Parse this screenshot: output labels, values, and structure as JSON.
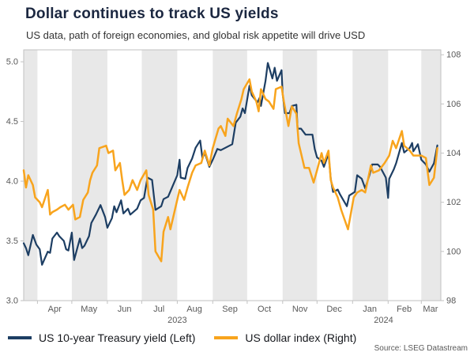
{
  "source": "Source: LSEG Datastream",
  "chart_data": {
    "type": "line",
    "title": "Dollar continues to track US yields",
    "subtitle": "US data, path of foreign economies, and global risk appetite will drive USD",
    "x_domain": [
      "2023-03-20",
      "2024-03-18"
    ],
    "legend_position": "bottom-left",
    "grid": "vertical-month-bands",
    "style": {
      "band": "#e8e8e8",
      "border": "#c2c2c2",
      "text": "#595959"
    },
    "left_axis": {
      "name": "US 10-year Treasury yield (%)",
      "range": [
        3.0,
        5.1
      ],
      "ticks": [
        "3.0",
        "3.5",
        "4.0",
        "4.5",
        "5.0"
      ]
    },
    "right_axis": {
      "name": "US dollar index",
      "range": [
        98,
        108.2
      ],
      "ticks": [
        "98",
        "100",
        "102",
        "104",
        "106",
        "108"
      ]
    },
    "month_starts": [
      "2023-04-01",
      "2023-05-01",
      "2023-06-01",
      "2023-07-01",
      "2023-08-01",
      "2023-09-01",
      "2023-10-01",
      "2023-11-01",
      "2023-12-01",
      "2024-01-01",
      "2024-02-01",
      "2024-03-01"
    ],
    "month_labels": [
      {
        "label": "Apr",
        "center": "2023-04-16"
      },
      {
        "label": "May",
        "center": "2023-05-16"
      },
      {
        "label": "Jun",
        "center": "2023-06-16"
      },
      {
        "label": "Jul",
        "center": "2023-07-16"
      },
      {
        "label": "Aug",
        "center": "2023-08-16"
      },
      {
        "label": "Sep",
        "center": "2023-09-16"
      },
      {
        "label": "Oct",
        "center": "2023-10-16"
      },
      {
        "label": "Nov",
        "center": "2023-11-16"
      },
      {
        "label": "Dec",
        "center": "2023-12-16"
      },
      {
        "label": "Jan",
        "center": "2024-01-16"
      },
      {
        "label": "Feb",
        "center": "2024-02-15"
      },
      {
        "label": "Mar",
        "center": "2024-03-09"
      }
    ],
    "year_labels": [
      {
        "label": "2023",
        "center": "2023-08-01"
      },
      {
        "label": "2024",
        "center": "2024-01-28"
      }
    ],
    "shaded_months": [
      [
        "2023-03-20",
        "2023-04-01"
      ],
      [
        "2023-05-01",
        "2023-06-01"
      ],
      [
        "2023-07-01",
        "2023-08-01"
      ],
      [
        "2023-09-01",
        "2023-10-01"
      ],
      [
        "2023-11-01",
        "2023-12-01"
      ],
      [
        "2024-01-01",
        "2024-02-01"
      ],
      [
        "2024-03-01",
        "2024-03-18"
      ]
    ],
    "series": [
      {
        "id": "treasury-yield",
        "name": "US 10-year Treasury yield (Left)",
        "axis": "left",
        "color": "#1d3e63",
        "width": 2.2,
        "points": [
          [
            "2023-03-20",
            3.48
          ],
          [
            "2023-03-22",
            3.44
          ],
          [
            "2023-03-24",
            3.38
          ],
          [
            "2023-03-28",
            3.55
          ],
          [
            "2023-03-31",
            3.47
          ],
          [
            "2023-04-03",
            3.43
          ],
          [
            "2023-04-05",
            3.3
          ],
          [
            "2023-04-10",
            3.41
          ],
          [
            "2023-04-12",
            3.4
          ],
          [
            "2023-04-14",
            3.52
          ],
          [
            "2023-04-18",
            3.57
          ],
          [
            "2023-04-20",
            3.54
          ],
          [
            "2023-04-24",
            3.5
          ],
          [
            "2023-04-26",
            3.43
          ],
          [
            "2023-04-28",
            3.42
          ],
          [
            "2023-05-01",
            3.57
          ],
          [
            "2023-05-03",
            3.34
          ],
          [
            "2023-05-08",
            3.52
          ],
          [
            "2023-05-10",
            3.44
          ],
          [
            "2023-05-12",
            3.46
          ],
          [
            "2023-05-16",
            3.54
          ],
          [
            "2023-05-18",
            3.65
          ],
          [
            "2023-05-22",
            3.72
          ],
          [
            "2023-05-26",
            3.8
          ],
          [
            "2023-05-30",
            3.7
          ],
          [
            "2023-06-01",
            3.61
          ],
          [
            "2023-06-05",
            3.69
          ],
          [
            "2023-06-07",
            3.79
          ],
          [
            "2023-06-09",
            3.74
          ],
          [
            "2023-06-13",
            3.84
          ],
          [
            "2023-06-15",
            3.73
          ],
          [
            "2023-06-19",
            3.77
          ],
          [
            "2023-06-21",
            3.72
          ],
          [
            "2023-06-27",
            3.77
          ],
          [
            "2023-06-30",
            3.84
          ],
          [
            "2023-07-03",
            3.86
          ],
          [
            "2023-07-06",
            4.03
          ],
          [
            "2023-07-10",
            4.01
          ],
          [
            "2023-07-13",
            3.76
          ],
          [
            "2023-07-18",
            3.79
          ],
          [
            "2023-07-20",
            3.85
          ],
          [
            "2023-07-24",
            3.87
          ],
          [
            "2023-07-28",
            3.96
          ],
          [
            "2023-08-01",
            4.05
          ],
          [
            "2023-08-03",
            4.18
          ],
          [
            "2023-08-04",
            4.03
          ],
          [
            "2023-08-08",
            4.02
          ],
          [
            "2023-08-10",
            4.11
          ],
          [
            "2023-08-14",
            4.19
          ],
          [
            "2023-08-17",
            4.28
          ],
          [
            "2023-08-21",
            4.34
          ],
          [
            "2023-08-23",
            4.19
          ],
          [
            "2023-08-25",
            4.24
          ],
          [
            "2023-08-29",
            4.12
          ],
          [
            "2023-09-01",
            4.18
          ],
          [
            "2023-09-05",
            4.27
          ],
          [
            "2023-09-08",
            4.26
          ],
          [
            "2023-09-12",
            4.28
          ],
          [
            "2023-09-14",
            4.29
          ],
          [
            "2023-09-18",
            4.31
          ],
          [
            "2023-09-21",
            4.49
          ],
          [
            "2023-09-25",
            4.54
          ],
          [
            "2023-09-27",
            4.61
          ],
          [
            "2023-09-29",
            4.57
          ],
          [
            "2023-10-03",
            4.8
          ],
          [
            "2023-10-05",
            4.72
          ],
          [
            "2023-10-10",
            4.66
          ],
          [
            "2023-10-12",
            4.7
          ],
          [
            "2023-10-13",
            4.63
          ],
          [
            "2023-10-17",
            4.84
          ],
          [
            "2023-10-19",
            4.99
          ],
          [
            "2023-10-23",
            4.86
          ],
          [
            "2023-10-25",
            4.95
          ],
          [
            "2023-10-27",
            4.84
          ],
          [
            "2023-10-31",
            4.93
          ],
          [
            "2023-11-01",
            4.73
          ],
          [
            "2023-11-03",
            4.57
          ],
          [
            "2023-11-07",
            4.57
          ],
          [
            "2023-11-09",
            4.63
          ],
          [
            "2023-11-13",
            4.64
          ],
          [
            "2023-11-14",
            4.44
          ],
          [
            "2023-11-17",
            4.44
          ],
          [
            "2023-11-21",
            4.39
          ],
          [
            "2023-11-27",
            4.39
          ],
          [
            "2023-11-29",
            4.27
          ],
          [
            "2023-12-01",
            4.2
          ],
          [
            "2023-12-05",
            4.17
          ],
          [
            "2023-12-07",
            4.12
          ],
          [
            "2023-12-11",
            4.23
          ],
          [
            "2023-12-13",
            4.02
          ],
          [
            "2023-12-15",
            3.91
          ],
          [
            "2023-12-19",
            3.93
          ],
          [
            "2023-12-21",
            3.89
          ],
          [
            "2023-12-27",
            3.79
          ],
          [
            "2023-12-29",
            3.88
          ],
          [
            "2024-01-03",
            3.91
          ],
          [
            "2024-01-05",
            4.05
          ],
          [
            "2024-01-09",
            4.02
          ],
          [
            "2024-01-12",
            3.94
          ],
          [
            "2024-01-16",
            4.06
          ],
          [
            "2024-01-18",
            4.14
          ],
          [
            "2024-01-23",
            4.14
          ],
          [
            "2024-01-25",
            4.12
          ],
          [
            "2024-01-30",
            4.03
          ],
          [
            "2024-02-01",
            3.86
          ],
          [
            "2024-02-02",
            4.02
          ],
          [
            "2024-02-06",
            4.1
          ],
          [
            "2024-02-08",
            4.15
          ],
          [
            "2024-02-13",
            4.32
          ],
          [
            "2024-02-15",
            4.24
          ],
          [
            "2024-02-20",
            4.28
          ],
          [
            "2024-02-22",
            4.32
          ],
          [
            "2024-02-23",
            4.25
          ],
          [
            "2024-02-27",
            4.31
          ],
          [
            "2024-03-01",
            4.18
          ],
          [
            "2024-03-05",
            4.14
          ],
          [
            "2024-03-08",
            4.08
          ],
          [
            "2024-03-12",
            4.15
          ],
          [
            "2024-03-15",
            4.3
          ]
        ]
      },
      {
        "id": "dollar-index",
        "name": "US dollar index (Right)",
        "axis": "right",
        "color": "#f8a41d",
        "width": 2.5,
        "points": [
          [
            "2023-03-20",
            103.3
          ],
          [
            "2023-03-22",
            102.6
          ],
          [
            "2023-03-24",
            103.1
          ],
          [
            "2023-03-28",
            102.7
          ],
          [
            "2023-03-30",
            102.2
          ],
          [
            "2023-04-03",
            102.0
          ],
          [
            "2023-04-05",
            101.8
          ],
          [
            "2023-04-10",
            102.5
          ],
          [
            "2023-04-12",
            101.5
          ],
          [
            "2023-04-14",
            101.6
          ],
          [
            "2023-04-18",
            101.7
          ],
          [
            "2023-04-21",
            101.8
          ],
          [
            "2023-04-25",
            101.9
          ],
          [
            "2023-04-28",
            101.7
          ],
          [
            "2023-05-02",
            101.9
          ],
          [
            "2023-05-04",
            101.3
          ],
          [
            "2023-05-08",
            101.4
          ],
          [
            "2023-05-11",
            102.1
          ],
          [
            "2023-05-15",
            102.4
          ],
          [
            "2023-05-17",
            102.9
          ],
          [
            "2023-05-19",
            103.2
          ],
          [
            "2023-05-23",
            103.5
          ],
          [
            "2023-05-25",
            104.2
          ],
          [
            "2023-05-31",
            104.3
          ],
          [
            "2023-06-02",
            104.0
          ],
          [
            "2023-06-06",
            104.1
          ],
          [
            "2023-06-08",
            103.3
          ],
          [
            "2023-06-12",
            103.6
          ],
          [
            "2023-06-14",
            102.9
          ],
          [
            "2023-06-16",
            102.3
          ],
          [
            "2023-06-20",
            102.5
          ],
          [
            "2023-06-23",
            102.9
          ],
          [
            "2023-06-27",
            102.5
          ],
          [
            "2023-06-30",
            102.9
          ],
          [
            "2023-07-05",
            103.3
          ],
          [
            "2023-07-07",
            102.3
          ],
          [
            "2023-07-11",
            101.7
          ],
          [
            "2023-07-13",
            100.0
          ],
          [
            "2023-07-18",
            99.6
          ],
          [
            "2023-07-20",
            100.8
          ],
          [
            "2023-07-24",
            101.4
          ],
          [
            "2023-07-26",
            100.9
          ],
          [
            "2023-07-31",
            101.9
          ],
          [
            "2023-08-03",
            102.5
          ],
          [
            "2023-08-07",
            102.1
          ],
          [
            "2023-08-10",
            102.6
          ],
          [
            "2023-08-14",
            103.2
          ],
          [
            "2023-08-17",
            103.5
          ],
          [
            "2023-08-22",
            103.6
          ],
          [
            "2023-08-25",
            104.1
          ],
          [
            "2023-08-29",
            103.5
          ],
          [
            "2023-09-01",
            104.2
          ],
          [
            "2023-09-06",
            105.0
          ],
          [
            "2023-09-08",
            105.1
          ],
          [
            "2023-09-12",
            104.7
          ],
          [
            "2023-09-14",
            105.4
          ],
          [
            "2023-09-19",
            105.1
          ],
          [
            "2023-09-22",
            105.6
          ],
          [
            "2023-09-26",
            106.2
          ],
          [
            "2023-09-28",
            106.6
          ],
          [
            "2023-10-03",
            107.0
          ],
          [
            "2023-10-05",
            106.5
          ],
          [
            "2023-10-09",
            106.1
          ],
          [
            "2023-10-11",
            105.7
          ],
          [
            "2023-10-13",
            106.6
          ],
          [
            "2023-10-17",
            106.2
          ],
          [
            "2023-10-20",
            106.1
          ],
          [
            "2023-10-24",
            105.8
          ],
          [
            "2023-10-26",
            106.6
          ],
          [
            "2023-10-31",
            106.7
          ],
          [
            "2023-11-02",
            106.1
          ],
          [
            "2023-11-06",
            105.1
          ],
          [
            "2023-11-09",
            105.9
          ],
          [
            "2023-11-13",
            105.6
          ],
          [
            "2023-11-15",
            104.4
          ],
          [
            "2023-11-20",
            103.4
          ],
          [
            "2023-11-24",
            103.4
          ],
          [
            "2023-11-28",
            102.8
          ],
          [
            "2023-12-01",
            103.3
          ],
          [
            "2023-12-05",
            104.0
          ],
          [
            "2023-12-07",
            103.6
          ],
          [
            "2023-12-11",
            104.1
          ],
          [
            "2023-12-13",
            102.9
          ],
          [
            "2023-12-15",
            102.6
          ],
          [
            "2023-12-19",
            102.2
          ],
          [
            "2023-12-22",
            101.7
          ],
          [
            "2023-12-28",
            100.9
          ],
          [
            "2024-01-02",
            102.2
          ],
          [
            "2024-01-05",
            102.4
          ],
          [
            "2024-01-09",
            102.5
          ],
          [
            "2024-01-12",
            102.4
          ],
          [
            "2024-01-17",
            103.5
          ],
          [
            "2024-01-19",
            103.2
          ],
          [
            "2024-01-24",
            103.3
          ],
          [
            "2024-01-29",
            103.6
          ],
          [
            "2024-02-02",
            103.9
          ],
          [
            "2024-02-05",
            104.5
          ],
          [
            "2024-02-08",
            104.2
          ],
          [
            "2024-02-13",
            104.9
          ],
          [
            "2024-02-15",
            104.3
          ],
          [
            "2024-02-20",
            104.1
          ],
          [
            "2024-02-23",
            103.9
          ],
          [
            "2024-02-28",
            103.9
          ],
          [
            "2024-03-01",
            103.9
          ],
          [
            "2024-03-05",
            103.8
          ],
          [
            "2024-03-08",
            102.7
          ],
          [
            "2024-03-12",
            103.0
          ],
          [
            "2024-03-14",
            103.8
          ],
          [
            "2024-03-15",
            104.2
          ]
        ]
      }
    ]
  }
}
